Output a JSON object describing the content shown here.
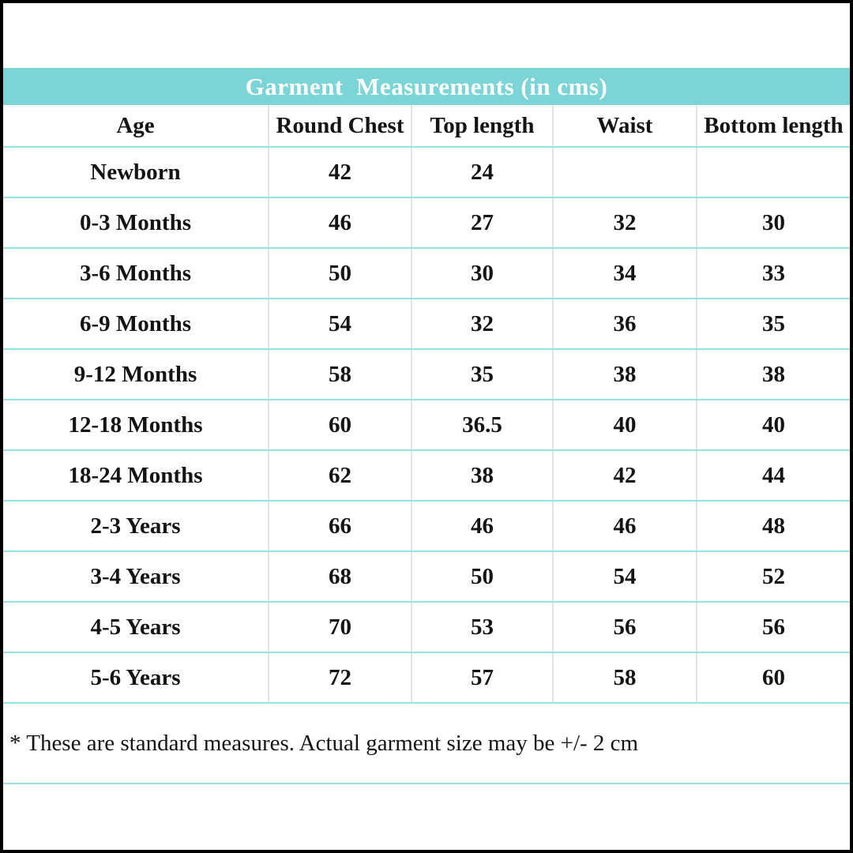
{
  "title": "Garment  Measurements (in cms)",
  "footnote": "* These are standard measures. Actual garment size may be +/- 2 cm",
  "colors": {
    "title_band_bg": "#7bd5d6",
    "title_text": "#ffffff",
    "row_divider": "#9ae2e2",
    "column_divider": "#e3e3e3",
    "outer_border": "#000000",
    "body_text": "#141414"
  },
  "table": {
    "columns": [
      "Age",
      "Round Chest",
      "Top length",
      "Waist",
      "Bottom length"
    ],
    "rows": [
      [
        "Newborn",
        "42",
        "24",
        "",
        ""
      ],
      [
        "0-3 Months",
        "46",
        "27",
        "32",
        "30"
      ],
      [
        "3-6 Months",
        "50",
        "30",
        "34",
        "33"
      ],
      [
        "6-9 Months",
        "54",
        "32",
        "36",
        "35"
      ],
      [
        "9-12 Months",
        "58",
        "35",
        "38",
        "38"
      ],
      [
        "12-18 Months",
        "60",
        "36.5",
        "40",
        "40"
      ],
      [
        "18-24 Months",
        "62",
        "38",
        "42",
        "44"
      ],
      [
        "2-3 Years",
        "66",
        "46",
        "46",
        "48"
      ],
      [
        "3-4 Years",
        "68",
        "50",
        "54",
        "52"
      ],
      [
        "4-5 Years",
        "70",
        "53",
        "56",
        "56"
      ],
      [
        "5-6 Years",
        "72",
        "57",
        "58",
        "60"
      ]
    ]
  },
  "chart_data": {
    "type": "table",
    "title": "Garment  Measurements (in cms)",
    "columns": [
      "Age",
      "Round Chest",
      "Top length",
      "Waist",
      "Bottom length"
    ],
    "rows": [
      {
        "age": "Newborn",
        "round_chest": 42,
        "top_length": 24,
        "waist": null,
        "bottom_length": null
      },
      {
        "age": "0-3 Months",
        "round_chest": 46,
        "top_length": 27,
        "waist": 32,
        "bottom_length": 30
      },
      {
        "age": "3-6 Months",
        "round_chest": 50,
        "top_length": 30,
        "waist": 34,
        "bottom_length": 33
      },
      {
        "age": "6-9 Months",
        "round_chest": 54,
        "top_length": 32,
        "waist": 36,
        "bottom_length": 35
      },
      {
        "age": "9-12 Months",
        "round_chest": 58,
        "top_length": 35,
        "waist": 38,
        "bottom_length": 38
      },
      {
        "age": "12-18 Months",
        "round_chest": 60,
        "top_length": 36.5,
        "waist": 40,
        "bottom_length": 40
      },
      {
        "age": "18-24 Months",
        "round_chest": 62,
        "top_length": 38,
        "waist": 42,
        "bottom_length": 44
      },
      {
        "age": "2-3 Years",
        "round_chest": 66,
        "top_length": 46,
        "waist": 46,
        "bottom_length": 48
      },
      {
        "age": "3-4 Years",
        "round_chest": 68,
        "top_length": 50,
        "waist": 54,
        "bottom_length": 52
      },
      {
        "age": "4-5 Years",
        "round_chest": 70,
        "top_length": 53,
        "waist": 56,
        "bottom_length": 56
      },
      {
        "age": "5-6 Years",
        "round_chest": 72,
        "top_length": 57,
        "waist": 58,
        "bottom_length": 60
      }
    ],
    "units": "cm",
    "note": "* These are standard measures. Actual garment size may be +/- 2 cm"
  }
}
